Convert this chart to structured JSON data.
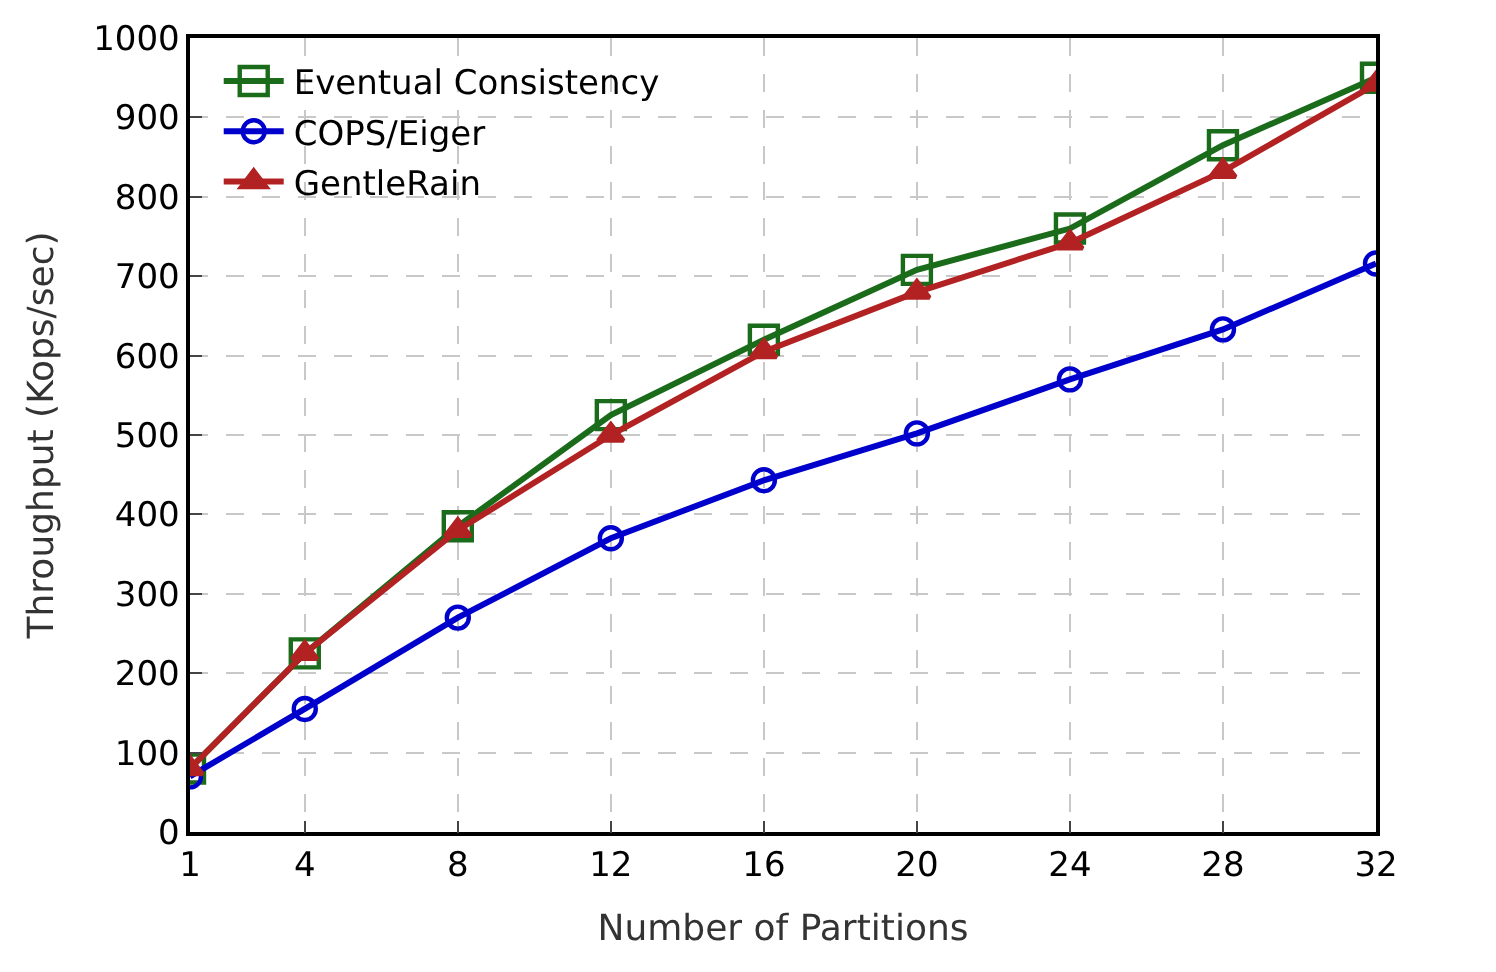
{
  "chart_data": {
    "type": "line",
    "xlabel": "Number of Partitions",
    "ylabel": "Throughput (Kops/sec)",
    "x": [
      1,
      4,
      8,
      12,
      16,
      20,
      24,
      28,
      32
    ],
    "series": [
      {
        "name": "Eventual Consistency",
        "color": "#1a6b1a",
        "marker": "square",
        "values": [
          80,
          225,
          385,
          525,
          620,
          708,
          760,
          865,
          950
        ]
      },
      {
        "name": "COPS/Eiger",
        "color": "#0000cc",
        "marker": "circle",
        "values": [
          70,
          155,
          270,
          370,
          443,
          502,
          570,
          633,
          716
        ]
      },
      {
        "name": "GentleRain",
        "color": "#b22222",
        "marker": "triangle",
        "values": [
          80,
          225,
          380,
          500,
          605,
          680,
          742,
          832,
          942
        ]
      }
    ],
    "xlim": [
      1,
      32
    ],
    "xticks": [
      1,
      4,
      8,
      12,
      16,
      20,
      24,
      28,
      32
    ],
    "ylim": [
      0,
      1000
    ],
    "yticks": [
      0,
      100,
      200,
      300,
      400,
      500,
      600,
      700,
      800,
      900,
      1000
    ],
    "grid": true,
    "legend": "top left",
    "line_style": "solid"
  }
}
